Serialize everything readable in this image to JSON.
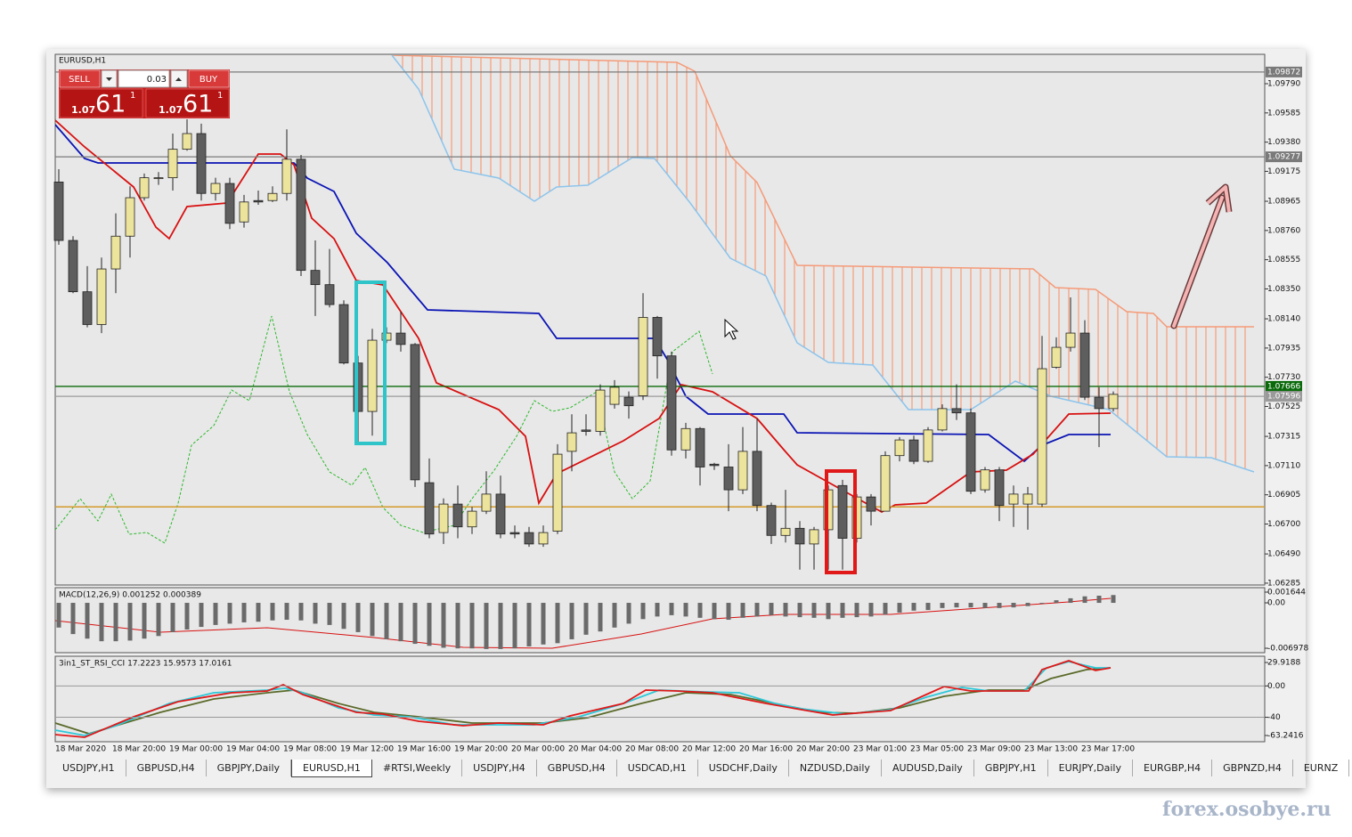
{
  "window": {
    "symbol_label": "EURUSD,H1"
  },
  "trade_panel": {
    "sell": "SELL",
    "lots": "0.03",
    "buy": "BUY",
    "sell_price": {
      "big": "1.07",
      "pips": "61",
      "frac": "1"
    },
    "buy_price": {
      "big": "1.07",
      "pips": "61",
      "frac": "1"
    }
  },
  "chart_data": {
    "type": "candlestick",
    "open": [
      1.091,
      1.0869,
      1.0833,
      1.081,
      1.0849,
      1.0872,
      1.0899,
      1.0913,
      1.0913,
      1.0933,
      1.0944,
      1.0902,
      1.0909,
      1.0882,
      1.0897,
      1.0897,
      1.0902,
      1.0926,
      1.0848,
      1.0838,
      1.0824,
      1.0783,
      1.0749,
      1.0799,
      1.0804,
      1.0796,
      1.0699,
      1.0664,
      1.0684,
      1.0668,
      1.0679,
      1.0691,
      1.0664,
      1.0664,
      1.0656,
      1.0665,
      1.0721,
      1.0736,
      1.0735,
      1.0754,
      1.0759,
      1.076,
      1.0815,
      1.0788,
      1.0722,
      1.0737,
      1.0712,
      1.071,
      1.0694,
      1.0721,
      1.0683,
      1.0662,
      1.0667,
      1.0656,
      1.0666,
      1.0697,
      1.066,
      1.0689,
      1.0679,
      1.0718,
      1.0729,
      1.0714,
      1.0736,
      1.0751,
      1.0748,
      1.0694,
      1.0708,
      1.0684,
      1.0684,
      1.0684,
      1.078,
      1.0794,
      1.0804,
      1.0759,
      1.0751
    ],
    "high": [
      1.0919,
      1.0872,
      1.0851,
      1.0857,
      1.0888,
      1.0907,
      1.0916,
      1.0917,
      1.0944,
      1.0954,
      1.0951,
      1.0913,
      1.0913,
      1.0901,
      1.0904,
      1.0907,
      1.0947,
      1.0929,
      1.0869,
      1.0863,
      1.0827,
      1.0788,
      1.0807,
      1.0808,
      1.0819,
      1.0797,
      1.0716,
      1.0688,
      1.0697,
      1.0682,
      1.0707,
      1.0704,
      1.0669,
      1.0668,
      1.0669,
      1.0726,
      1.0747,
      1.0747,
      1.0768,
      1.0771,
      1.0763,
      1.0832,
      1.0816,
      1.0791,
      1.0741,
      1.0738,
      1.0713,
      1.0726,
      1.0738,
      1.0744,
      1.0685,
      1.0694,
      1.0672,
      1.0668,
      1.0697,
      1.0701,
      1.0691,
      1.0691,
      1.0721,
      1.0731,
      1.0732,
      1.0738,
      1.0754,
      1.0768,
      1.0751,
      1.071,
      1.071,
      1.0697,
      1.0696,
      1.0802,
      1.0801,
      1.0829,
      1.0813,
      1.0766,
      1.0763
    ],
    "low": [
      1.0866,
      1.0832,
      1.0808,
      1.0804,
      1.0832,
      1.0857,
      1.0897,
      1.0908,
      1.0904,
      1.0932,
      1.0897,
      1.0897,
      1.0877,
      1.0878,
      1.0894,
      1.0896,
      1.0897,
      1.0844,
      1.0816,
      1.0822,
      1.0782,
      1.0726,
      1.0732,
      1.0797,
      1.0791,
      1.0696,
      1.066,
      1.0656,
      1.066,
      1.0663,
      1.0677,
      1.066,
      1.066,
      1.0654,
      1.0654,
      1.0663,
      1.0707,
      1.0732,
      1.0732,
      1.0751,
      1.0744,
      1.0757,
      1.0772,
      1.0718,
      1.0716,
      1.0697,
      1.0708,
      1.0679,
      1.0691,
      1.0679,
      1.0656,
      1.0657,
      1.0638,
      1.0638,
      1.0638,
      1.0638,
      1.0657,
      1.0669,
      1.0679,
      1.0714,
      1.0712,
      1.0713,
      1.0735,
      1.0743,
      1.0691,
      1.0692,
      1.0672,
      1.0668,
      1.0666,
      1.0682,
      1.0779,
      1.0791,
      1.0757,
      1.0724,
      1.0749
    ],
    "close": [
      1.0869,
      1.0833,
      1.081,
      1.0849,
      1.0872,
      1.0899,
      1.0913,
      1.0913,
      1.0933,
      1.0944,
      1.0902,
      1.0909,
      1.0881,
      1.0896,
      1.0896,
      1.0902,
      1.0926,
      1.0848,
      1.0838,
      1.0824,
      1.0783,
      1.0749,
      1.0799,
      1.0804,
      1.0796,
      1.0701,
      1.0663,
      1.0684,
      1.0668,
      1.0679,
      1.0691,
      1.0663,
      1.0663,
      1.0656,
      1.0664,
      1.0719,
      1.0734,
      1.0735,
      1.0764,
      1.0766,
      1.0753,
      1.0815,
      1.0788,
      1.0722,
      1.0737,
      1.071,
      1.0711,
      1.0694,
      1.0721,
      1.0683,
      1.0662,
      1.0667,
      1.0656,
      1.0666,
      1.0694,
      1.066,
      1.0689,
      1.0679,
      1.0718,
      1.0729,
      1.0714,
      1.0736,
      1.0751,
      1.0748,
      1.0693,
      1.0708,
      1.0683,
      1.0691,
      1.0691,
      1.0779,
      1.0794,
      1.0804,
      1.0759,
      1.0751,
      1.0761
    ],
    "up_color": "#ece39c",
    "down_color": "#5e5e5e",
    "ylim": [
      1.06272,
      1.0999
    ],
    "yticks": [
      {
        "value": 1.0979,
        "label": "1.09790"
      },
      1.09585,
      {
        "value": 1.0938,
        "label": "1.09380"
      },
      1.09175,
      1.08965,
      {
        "value": 1.0876,
        "label": "1.08760"
      },
      1.08555,
      {
        "value": 1.0835,
        "label": "1.08350"
      },
      {
        "value": 1.0814,
        "label": "1.08140"
      },
      1.07935,
      {
        "value": 1.0773,
        "label": "1.07730"
      },
      1.07525,
      1.07315,
      {
        "value": 1.0711,
        "label": "1.07110"
      },
      1.06905,
      {
        "value": 1.067,
        "label": "1.06700"
      },
      {
        "value": 1.0649,
        "label": "1.06490"
      },
      1.06285
    ],
    "price_lines": [
      {
        "value": 1.09872,
        "color": "#7a7a7a"
      },
      {
        "value": 1.09277,
        "color": "#7a7a7a"
      },
      {
        "value": 1.07666,
        "color": "#0a6a0a"
      },
      {
        "value": 1.07596,
        "color": "#9a9a9a"
      }
    ],
    "levels": [
      {
        "value": 1.0682,
        "color": "#d39a2a"
      }
    ],
    "x_labels": [
      "18 Mar 2020",
      "18 Mar 20:00",
      "19 Mar 00:00",
      "19 Mar 04:00",
      "19 Mar 08:00",
      "19 Mar 12:00",
      "19 Mar 16:00",
      "19 Mar 20:00",
      "20 Mar 00:00",
      "20 Mar 04:00",
      "20 Mar 08:00",
      "20 Mar 12:00",
      "20 Mar 16:00",
      "20 Mar 20:00",
      "23 Mar 01:00",
      "23 Mar 05:00",
      "23 Mar 09:00",
      "23 Mar 13:00",
      "23 Mar 17:00"
    ]
  },
  "macd": {
    "type": "bar",
    "title": "MACD(12,26,9) 0.001252 0.000389",
    "color": "#6a6a6a",
    "values": [
      -0.0038,
      -0.0048,
      -0.0055,
      -0.0059,
      -0.0059,
      -0.0058,
      -0.0055,
      -0.0051,
      -0.0045,
      -0.0041,
      -0.0037,
      -0.0034,
      -0.0032,
      -0.003,
      -0.0029,
      -0.0027,
      -0.0026,
      -0.0027,
      -0.0032,
      -0.0034,
      -0.004,
      -0.0045,
      -0.0051,
      -0.0056,
      -0.0059,
      -0.0063,
      -0.0066,
      -0.0069,
      -0.007,
      -0.007,
      -0.0071,
      -0.0071,
      -0.007,
      -0.0067,
      -0.0064,
      -0.0062,
      -0.0056,
      -0.0049,
      -0.0044,
      -0.0038,
      -0.0032,
      -0.0025,
      -0.0021,
      -0.0019,
      -0.0021,
      -0.0023,
      -0.0025,
      -0.0026,
      -0.0023,
      -0.0021,
      -0.0019,
      -0.0021,
      -0.0022,
      -0.0023,
      -0.0025,
      -0.0023,
      -0.0022,
      -0.0021,
      -0.0018,
      -0.0015,
      -0.0012,
      -0.0011,
      -0.0008,
      -0.0007,
      -0.0007,
      -0.0008,
      -0.0008,
      -0.0007,
      -0.0005,
      -0.0001,
      0.0004,
      0.0007,
      0.001,
      0.0011,
      0.0012
    ],
    "ylim": [
      -0.00766,
      0.00233
    ],
    "yticks": [
      0.001644,
      {
        "value": 0,
        "label": "0.00"
      },
      -0.006978
    ]
  },
  "oscillator": {
    "title": "3in1_ST_RSI_CCI 17.2223 15.9573 17.0161",
    "ylim": [
      -71.2,
      37.9
    ],
    "yticks": [
      29.9188,
      {
        "value": 0,
        "label": "0.00"
      },
      -40,
      -63.2416
    ]
  },
  "tabs": [
    "USDJPY,H1",
    "GBPUSD,H4",
    "GBPJPY,Daily",
    "EURUSD,H1",
    "#RTSI,Weekly",
    "USDJPY,H4",
    "GBPUSD,H4",
    "USDCAD,H1",
    "USDCHF,Daily",
    "NZDUSD,Daily",
    "AUDUSD,Daily",
    "GBPJPY,H1",
    "EURJPY,Daily",
    "EURGBP,H4",
    "GBPNZD,H4",
    "EURNZ"
  ],
  "active_tab": 3,
  "watermark": "forex.osobye.ru"
}
